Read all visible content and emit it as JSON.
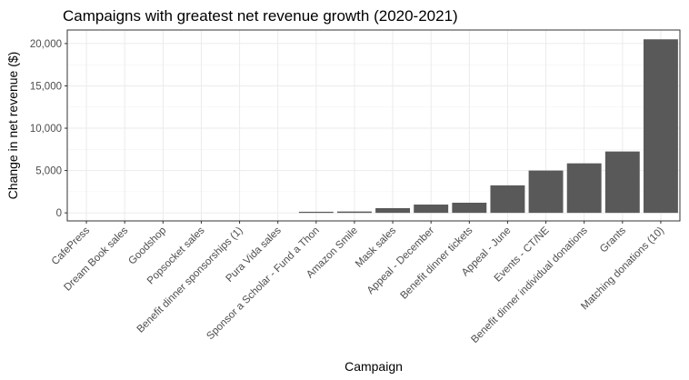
{
  "chart_data": {
    "type": "bar",
    "title": "Campaigns with greatest net revenue growth (2020-2021)",
    "xlabel": "Campaign",
    "ylabel": "Change in net revenue ($)",
    "categories": [
      "CafePress",
      "Dream Book sales",
      "Goodshop",
      "Popsocket sales",
      "Benefit dinner sponsorships (1)",
      "Pura Vida sales",
      "Sponsor a Scholar - Fund a Thon",
      "Amazon Smile",
      "Mask sales",
      "Appeal - December",
      "Benefit dinner tickets",
      "Appeal - June",
      "Events - CT/NE",
      "Benefit dinner individual donations",
      "Grants",
      "Matching donations (10)"
    ],
    "values": [
      0,
      0,
      0,
      0,
      0,
      0,
      130,
      160,
      560,
      980,
      1200,
      3250,
      5000,
      5850,
      7250,
      20500
    ],
    "ylim": [
      -950,
      21600
    ],
    "yticks": [
      0,
      5000,
      10000,
      15000,
      20000
    ],
    "ytick_labels": [
      "0",
      "5,000",
      "10,000",
      "15,000",
      "20,000"
    ],
    "grid": true,
    "legend": "none",
    "bar_color": "#595959"
  }
}
